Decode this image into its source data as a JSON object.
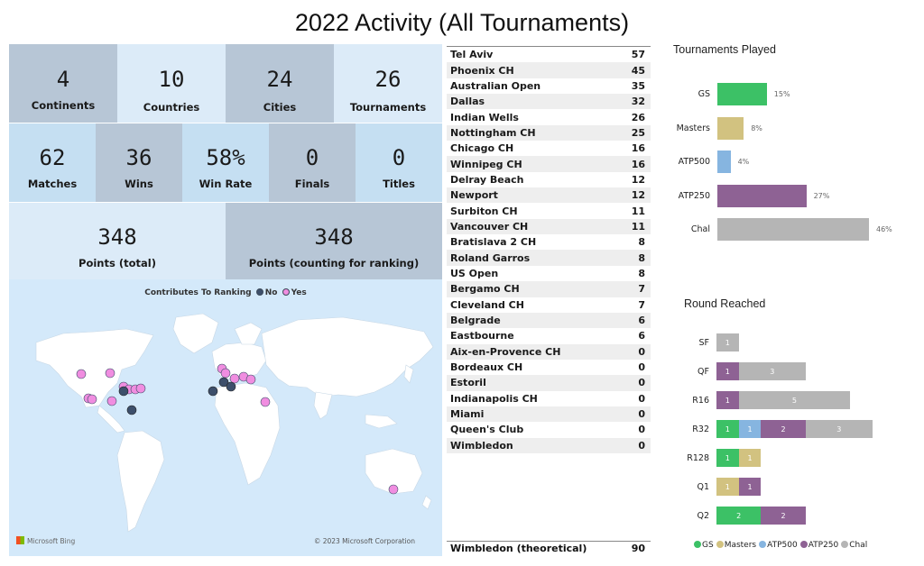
{
  "title": "2022 Activity (All Tournaments)",
  "kpis": {
    "continents": {
      "value": "4",
      "label": "Continents"
    },
    "countries": {
      "value": "10",
      "label": "Countries"
    },
    "cities": {
      "value": "24",
      "label": "Cities"
    },
    "tournaments": {
      "value": "26",
      "label": "Tournaments"
    },
    "matches": {
      "value": "62",
      "label": "Matches"
    },
    "wins": {
      "value": "36",
      "label": "Wins"
    },
    "win_rate": {
      "value": "58%",
      "label": "Win Rate"
    },
    "finals": {
      "value": "0",
      "label": "Finals"
    },
    "titles": {
      "value": "0",
      "label": "Titles"
    },
    "points_total": {
      "value": "348",
      "label": "Points (total)"
    },
    "points_ranking": {
      "value": "348",
      "label": "Points (counting for ranking)"
    }
  },
  "map": {
    "legend_title": "Contributes To Ranking",
    "legend_no": "No",
    "legend_yes": "Yes",
    "color_no": "#3d4f6b",
    "color_yes": "#f08de0",
    "provider": "Microsoft Bing",
    "copyright": "© 2023 Microsoft Corporation"
  },
  "tournament_points": [
    {
      "name": "Tel Aviv",
      "points": "57"
    },
    {
      "name": "Phoenix CH",
      "points": "45"
    },
    {
      "name": "Australian Open",
      "points": "35"
    },
    {
      "name": "Dallas",
      "points": "32"
    },
    {
      "name": "Indian Wells",
      "points": "26"
    },
    {
      "name": "Nottingham CH",
      "points": "25"
    },
    {
      "name": "Chicago CH",
      "points": "16"
    },
    {
      "name": "Winnipeg CH",
      "points": "16"
    },
    {
      "name": "Delray Beach",
      "points": "12"
    },
    {
      "name": "Newport",
      "points": "12"
    },
    {
      "name": "Surbiton CH",
      "points": "11"
    },
    {
      "name": "Vancouver CH",
      "points": "11"
    },
    {
      "name": "Bratislava 2 CH",
      "points": "8"
    },
    {
      "name": "Roland Garros",
      "points": "8"
    },
    {
      "name": "US Open",
      "points": "8"
    },
    {
      "name": "Bergamo CH",
      "points": "7"
    },
    {
      "name": "Cleveland CH",
      "points": "7"
    },
    {
      "name": "Belgrade",
      "points": "6"
    },
    {
      "name": "Eastbourne",
      "points": "6"
    },
    {
      "name": "Aix-en-Provence CH",
      "points": "0"
    },
    {
      "name": "Bordeaux CH",
      "points": "0"
    },
    {
      "name": "Estoril",
      "points": "0"
    },
    {
      "name": "Indianapolis CH",
      "points": "0"
    },
    {
      "name": "Miami",
      "points": "0"
    },
    {
      "name": "Queen's Club",
      "points": "0"
    },
    {
      "name": "Wimbledon",
      "points": "0"
    }
  ],
  "theoretical": {
    "name": "Wimbledon (theoretical)",
    "points": "90"
  },
  "colors": {
    "GS": "#3cc166",
    "Masters": "#d2c280",
    "ATP500": "#86b5e0",
    "ATP250": "#8e6294",
    "Chal": "#b5b5b5"
  },
  "chart_data": [
    {
      "type": "bar",
      "title": "Tournaments Played",
      "categories": [
        "GS",
        "Masters",
        "ATP500",
        "ATP250",
        "Chal"
      ],
      "values": [
        15,
        8,
        4,
        27,
        46
      ],
      "value_labels": [
        "15%",
        "8%",
        "4%",
        "27%",
        "46%"
      ],
      "orientation": "horizontal"
    },
    {
      "type": "bar",
      "title": "Round Reached",
      "orientation": "horizontal",
      "stacked": true,
      "categories": [
        "SF",
        "QF",
        "R16",
        "R32",
        "R128",
        "Q1",
        "Q2"
      ],
      "series": [
        {
          "name": "GS",
          "values": [
            0,
            0,
            0,
            1,
            1,
            0,
            2
          ]
        },
        {
          "name": "Masters",
          "values": [
            0,
            0,
            0,
            0,
            1,
            1,
            0
          ]
        },
        {
          "name": "ATP500",
          "values": [
            0,
            0,
            0,
            1,
            0,
            0,
            0
          ]
        },
        {
          "name": "ATP250",
          "values": [
            0,
            1,
            1,
            2,
            0,
            1,
            2
          ]
        },
        {
          "name": "Chal",
          "values": [
            1,
            3,
            5,
            3,
            0,
            0,
            0
          ]
        }
      ],
      "legend": "bottom"
    }
  ]
}
